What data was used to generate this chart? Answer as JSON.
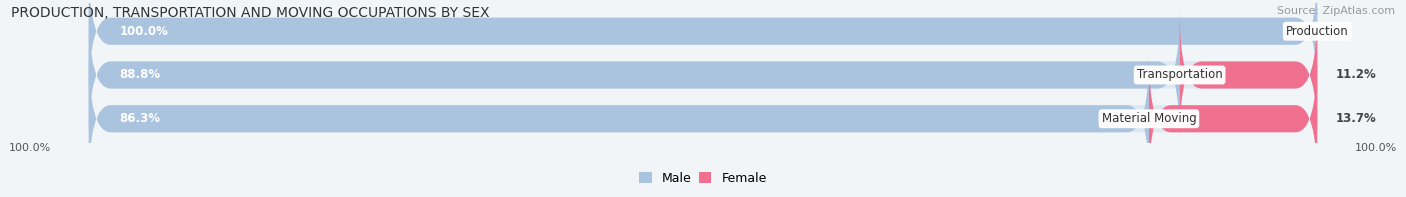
{
  "title": "PRODUCTION, TRANSPORTATION AND MOVING OCCUPATIONS BY SEX",
  "source_text": "Source: ZipAtlas.com",
  "categories": [
    "Production",
    "Transportation",
    "Material Moving"
  ],
  "male_values": [
    100.0,
    88.8,
    86.3
  ],
  "female_values": [
    0.0,
    11.2,
    13.7
  ],
  "male_color": "#aac4e0",
  "female_color": "#f07090",
  "bar_bg_color": "#dde8f2",
  "bg_color": "#f2f5f8",
  "title_fontsize": 10,
  "source_fontsize": 8,
  "bar_label_fontsize": 8.5,
  "cat_label_fontsize": 8.5,
  "legend_fontsize": 9,
  "bottom_label": "100.0%"
}
